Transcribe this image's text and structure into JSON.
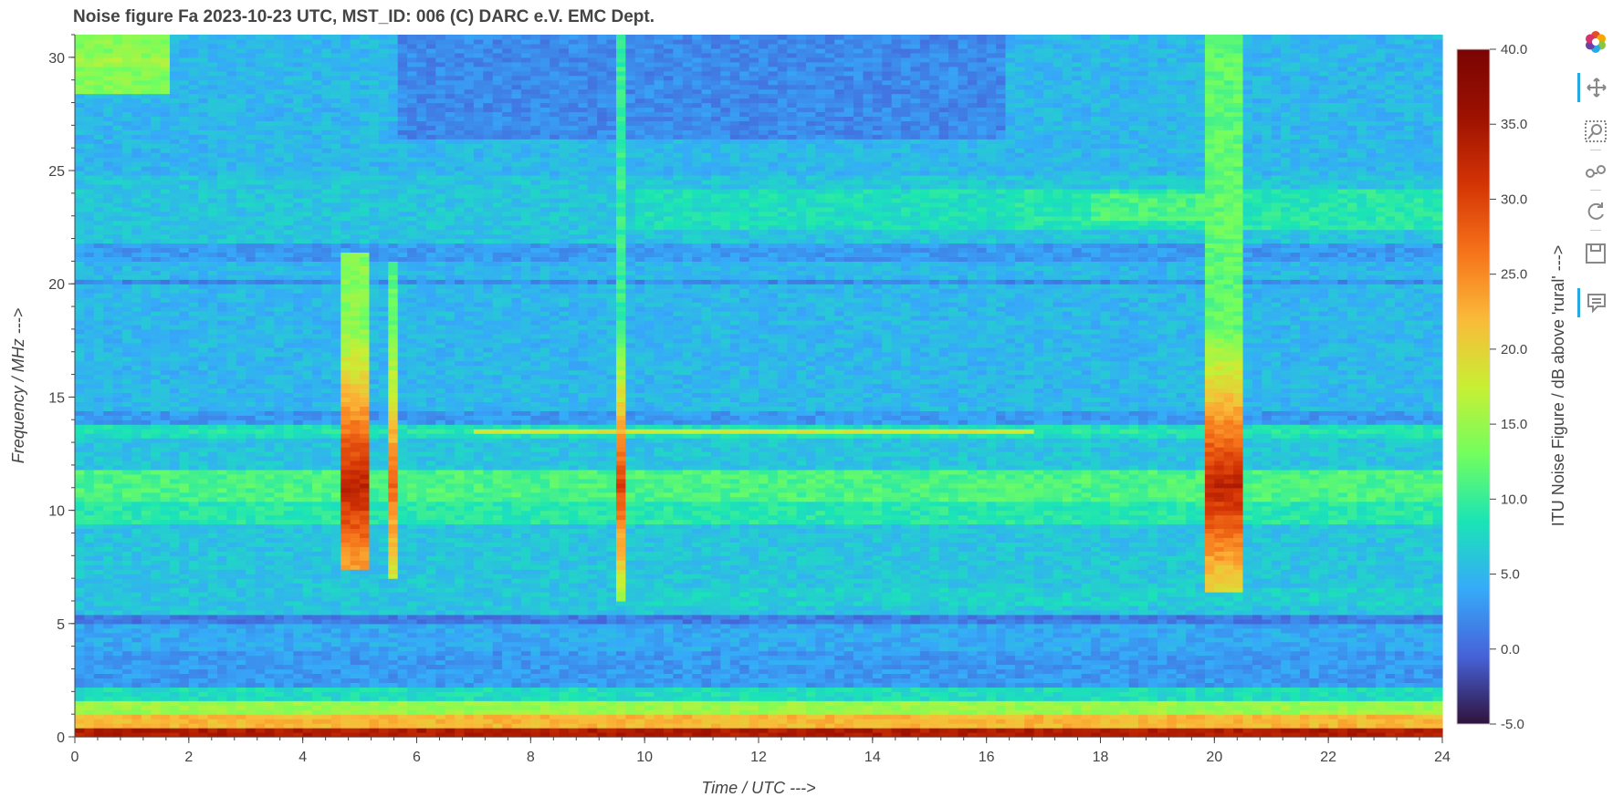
{
  "chart_data": {
    "type": "heatmap",
    "title": "Noise figure Fa  2023-10-23  UTC,  MST_ID:  006   (C) DARC e.V. EMC Dept.",
    "xlabel": "Time / UTC --->",
    "ylabel": "Frequency / MHz --->",
    "xlim": [
      0,
      24
    ],
    "ylim": [
      0,
      31
    ],
    "x_ticks": [
      0,
      2,
      4,
      6,
      8,
      10,
      12,
      14,
      16,
      18,
      20,
      22,
      24
    ],
    "y_ticks": [
      0,
      5,
      10,
      15,
      20,
      25,
      30
    ],
    "colorbar": {
      "label": "ITU Noise Figure / dB above 'rural' --->",
      "range": [
        -5.0,
        40.0
      ],
      "ticks": [
        "40.0",
        "35.0",
        "30.0",
        "25.0",
        "20.0",
        "15.0",
        "10.0",
        "5.0",
        "0.0",
        "-5.0"
      ],
      "colormap": "turbo"
    },
    "background_level_db": 5,
    "freq_bands": [
      {
        "f0": 0,
        "f1": 0.5,
        "db": 34
      },
      {
        "f0": 0.5,
        "f1": 1.0,
        "db": 22
      },
      {
        "f0": 1.0,
        "f1": 1.6,
        "db": 15
      },
      {
        "f0": 1.6,
        "f1": 2.3,
        "db": 8
      },
      {
        "f0": 2.3,
        "f1": 3.8,
        "db": 3
      },
      {
        "f0": 3.8,
        "f1": 5.0,
        "db": 4
      },
      {
        "f0": 5.0,
        "f1": 5.5,
        "db": 1
      },
      {
        "f0": 5.5,
        "f1": 9.5,
        "db": 6
      },
      {
        "f0": 9.5,
        "f1": 10.5,
        "db": 9
      },
      {
        "f0": 10.5,
        "f1": 11.8,
        "db": 11
      },
      {
        "f0": 11.8,
        "f1": 13.3,
        "db": 6
      },
      {
        "f0": 13.3,
        "f1": 13.8,
        "db": 8
      },
      {
        "f0": 13.8,
        "f1": 14.5,
        "db": 3
      },
      {
        "f0": 14.5,
        "f1": 20.0,
        "db": 5
      },
      {
        "f0": 20.0,
        "f1": 20.3,
        "db": 2
      },
      {
        "f0": 20.3,
        "f1": 21.0,
        "db": 5
      },
      {
        "f0": 21.0,
        "f1": 21.8,
        "db": 3
      },
      {
        "f0": 21.8,
        "f1": 24.8,
        "db": 6
      },
      {
        "f0": 24.8,
        "f1": 31.0,
        "db": 5
      }
    ],
    "regions": [
      {
        "t0": 0,
        "t1": 1.75,
        "f0": 28.5,
        "f1": 31,
        "db": 14
      },
      {
        "t0": 0,
        "t1": 1.75,
        "f0": 29.6,
        "f1": 30.1,
        "db": 16
      },
      {
        "t0": 5.6,
        "t1": 16.4,
        "f0": 26.5,
        "f1": 31,
        "db": 2
      },
      {
        "t0": 9.8,
        "t1": 16.4,
        "f0": 22.5,
        "f1": 24.2,
        "db": 8
      },
      {
        "t0": 16.4,
        "t1": 24,
        "f0": 22.5,
        "f1": 24.2,
        "db": 9
      },
      {
        "t0": 17.8,
        "t1": 20.0,
        "f0": 22.8,
        "f1": 24.0,
        "db": 11
      },
      {
        "t0": 9.6,
        "t1": 24,
        "f0": 5.9,
        "f1": 6.6,
        "db": 7
      },
      {
        "t0": 0,
        "t1": 24,
        "f0": 13.45,
        "f1": 13.65,
        "db": 9
      },
      {
        "t0": 7.0,
        "t1": 16.8,
        "f0": 13.5,
        "f1": 13.6,
        "db": 18
      }
    ],
    "bursts": [
      {
        "t0": 4.6,
        "t1": 5.1,
        "f0": 7.5,
        "f1": 21.5,
        "peak_db": 33,
        "edge_db": 14
      },
      {
        "t0": 5.42,
        "t1": 5.62,
        "f0": 7.0,
        "f1": 21.0,
        "peak_db": 27,
        "edge_db": 12
      },
      {
        "t0": 9.55,
        "t1": 9.75,
        "f0": 6.0,
        "f1": 31.0,
        "peak_db": 30,
        "edge_db": 10
      },
      {
        "t0": 19.8,
        "t1": 20.45,
        "f0": 6.5,
        "f1": 31.0,
        "peak_db": 33,
        "edge_db": 12
      }
    ],
    "burst_peak_freq_mhz": 11.1
  },
  "toolbar": {
    "tools": [
      {
        "name": "bokeh-logo-icon",
        "icon": "logo"
      },
      {
        "name": "pan-icon",
        "icon": "pan"
      },
      {
        "name": "box-zoom-icon",
        "icon": "zoom"
      },
      {
        "name": "wheel-zoom-icon",
        "icon": "wheel"
      },
      {
        "name": "reset-icon",
        "icon": "reset"
      },
      {
        "name": "save-icon",
        "icon": "save"
      },
      {
        "name": "hover-icon",
        "icon": "hover"
      }
    ]
  }
}
